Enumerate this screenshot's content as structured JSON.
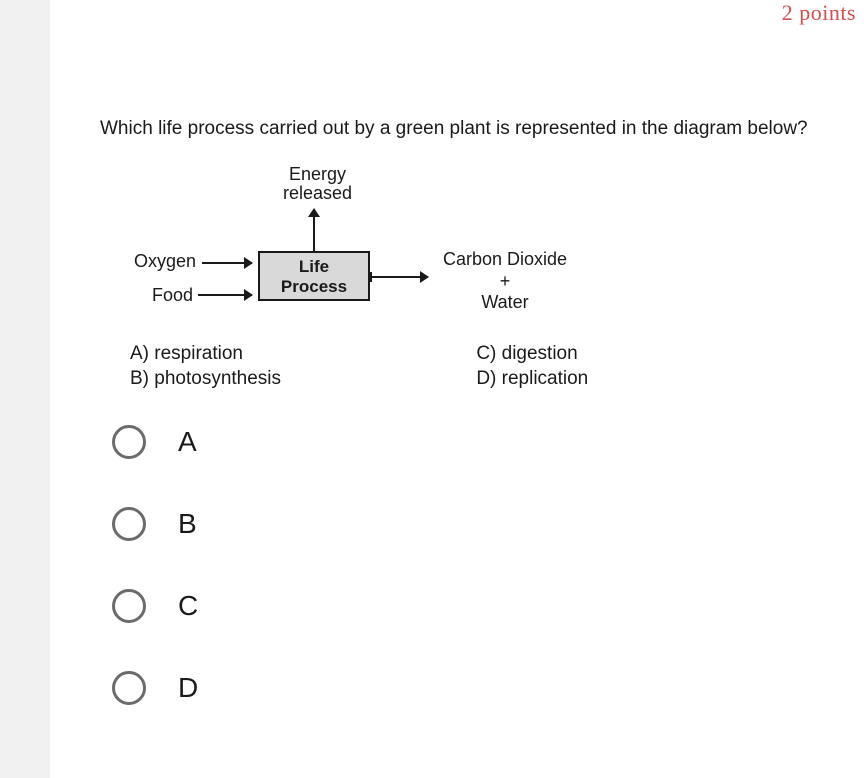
{
  "points_text": "2 points",
  "question": "Which life process carried out by a green plant is represented in the diagram below?",
  "diagram": {
    "top_label_line1": "Energy",
    "top_label_line2": "released",
    "box_line1": "Life",
    "box_line2": "Process",
    "input1": "Oxygen",
    "input2": "Food",
    "output_line1": "Carbon Dioxide",
    "output_line2": "+",
    "output_line3": "Water",
    "box_bg": "#d9d9d9",
    "line_color": "#1a1a1a"
  },
  "key": {
    "a": "A)  respiration",
    "b": "B)  photosynthesis",
    "c": "C)  digestion",
    "d": "D)  replication"
  },
  "options": [
    {
      "label": "A"
    },
    {
      "label": "B"
    },
    {
      "label": "C"
    },
    {
      "label": "D"
    }
  ],
  "colors": {
    "page_bg": "#f0f0f0",
    "card_bg": "#ffffff",
    "points": "#d84c4c",
    "text": "#1a1a1a",
    "radio_border": "#6b6b6b"
  }
}
